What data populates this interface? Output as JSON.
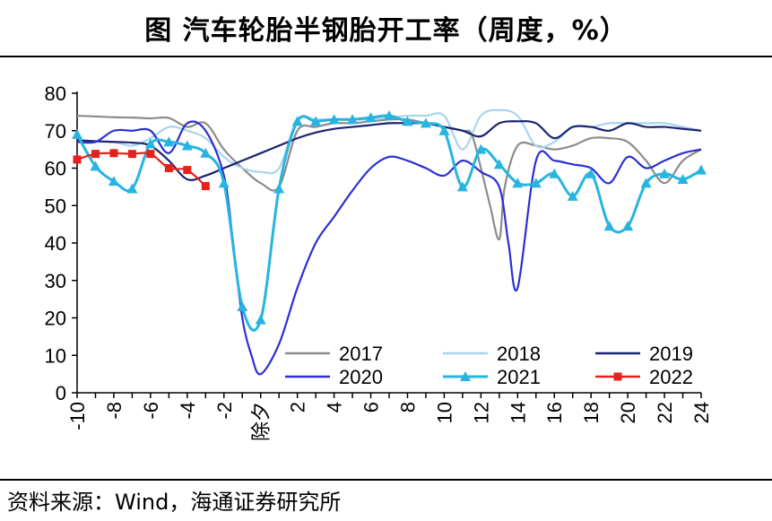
{
  "header": {
    "title": "图 汽车轮胎半钢胎开工率（周度，%）"
  },
  "footer": {
    "source": "资料来源：Wind，海通证券研究所"
  },
  "chart_data": {
    "type": "line",
    "title": "图 汽车轮胎半钢胎开工率（周度，%）",
    "xlabel": "",
    "ylabel": "",
    "ylim": [
      0,
      80
    ],
    "yticks": [
      0,
      10,
      20,
      30,
      40,
      50,
      60,
      70,
      80
    ],
    "xlim": [
      -10,
      24
    ],
    "xticks": [
      "-10",
      "-8",
      "-6",
      "-4",
      "-2",
      "除夕",
      "2",
      "4",
      "6",
      "8",
      "10",
      "12",
      "14",
      "16",
      "18",
      "20",
      "22",
      "24"
    ],
    "x_note": "x is week offset relative to Chinese New Year's Eve (除夕 = 0)",
    "grid": false,
    "legend_position": "bottom-inside",
    "series": [
      {
        "name": "2017",
        "color": "#8c8c8c",
        "marker": "none",
        "x": [
          -10,
          -9,
          -8,
          -7,
          -6,
          -5,
          -4,
          -3,
          -2,
          -1,
          0,
          1,
          2,
          3,
          4,
          5,
          6,
          7,
          8,
          9,
          10,
          11,
          11.5,
          12,
          12.5,
          13,
          13.3,
          14,
          15,
          16,
          17,
          18,
          19,
          20,
          21,
          22,
          23,
          24
        ],
        "y": [
          74,
          73.8,
          73.6,
          73.5,
          73.3,
          73.4,
          71,
          72,
          65,
          60,
          56,
          55,
          70,
          71,
          72,
          72,
          72.5,
          73,
          73,
          72,
          71,
          70,
          69,
          60,
          50,
          41,
          55,
          66,
          66,
          65,
          66,
          68,
          68,
          67,
          62,
          56,
          62,
          65
        ]
      },
      {
        "name": "2018",
        "color": "#a9d4ef",
        "marker": "none",
        "x": [
          -10,
          -9,
          -8,
          -7,
          -6,
          -5,
          -4,
          -3,
          -2,
          -1,
          0,
          1,
          2,
          3,
          4,
          5,
          6,
          7,
          8,
          9,
          10,
          11,
          12,
          13,
          14,
          15,
          16,
          17,
          18,
          19,
          20,
          21,
          22,
          23,
          24
        ],
        "y": [
          67,
          67,
          67,
          66,
          68,
          71,
          70,
          68,
          63,
          60,
          59,
          60,
          73,
          73,
          73,
          73,
          73,
          73.5,
          74,
          74,
          74,
          65,
          74,
          75.5,
          74,
          66,
          67,
          71,
          71,
          72,
          72,
          72,
          72,
          71,
          70
        ]
      },
      {
        "name": "2019",
        "color": "#1a2470",
        "marker": "none",
        "x": [
          -10,
          -9,
          -8,
          -7,
          -6,
          -5,
          -4,
          -3,
          -2,
          -1,
          0,
          1,
          2,
          3,
          4,
          5,
          6,
          7,
          8,
          9,
          10,
          11,
          12,
          13,
          14,
          15,
          16,
          17,
          18,
          19,
          20,
          21,
          22,
          23,
          24
        ],
        "y": [
          67.5,
          67.2,
          67,
          66.8,
          66,
          62,
          57,
          58,
          60,
          62,
          64,
          66,
          68,
          69.5,
          70.5,
          71,
          71.5,
          72,
          72,
          72,
          71,
          70,
          68.5,
          72,
          72.5,
          72,
          68,
          71,
          71,
          70,
          72,
          71,
          71,
          70.5,
          70
        ]
      },
      {
        "name": "2020",
        "color": "#2b2fd4",
        "marker": "none",
        "x": [
          -10,
          -9,
          -8,
          -7,
          -6,
          -5,
          -4,
          -3,
          -2,
          -1.5,
          -1,
          -0.5,
          0,
          1,
          2,
          3,
          4,
          5,
          6,
          7,
          8,
          9,
          10,
          11,
          12,
          13,
          13.5,
          14,
          15,
          16,
          17,
          18,
          19,
          20,
          21,
          22,
          23,
          24
        ],
        "y": [
          67,
          67,
          70,
          70,
          70,
          64,
          72,
          70,
          58,
          40,
          20,
          10,
          5,
          13,
          28,
          40,
          47,
          54,
          60,
          63,
          62,
          60,
          58,
          62,
          59,
          55,
          40,
          28,
          62,
          62,
          61,
          60,
          56,
          63,
          60,
          62,
          64,
          65
        ]
      },
      {
        "name": "2021",
        "color": "#27b4e0",
        "marker": "triangle",
        "x": [
          -10,
          -9,
          -8,
          -7,
          -6,
          -5,
          -4,
          -3,
          -2,
          -1,
          0,
          1,
          2,
          3,
          4,
          5,
          6,
          7,
          8,
          9,
          10,
          11,
          12,
          13,
          14,
          15,
          16,
          17,
          18,
          19,
          20,
          21,
          22,
          23,
          24
        ],
        "y": [
          69,
          60.5,
          56.5,
          54.5,
          66.5,
          67,
          66,
          64,
          56,
          23,
          19.5,
          54.5,
          72.5,
          72.5,
          73,
          73,
          73.5,
          74,
          72.5,
          72,
          70,
          55,
          65,
          61,
          56,
          56,
          58.5,
          52.5,
          58.5,
          44.5,
          44.5,
          56,
          58.5,
          57,
          59.5
        ]
      },
      {
        "name": "2022",
        "color": "#e8201c",
        "marker": "square",
        "x": [
          -10,
          -9,
          -8,
          -7,
          -6,
          -5,
          -4,
          -3
        ],
        "y": [
          62.3,
          63.8,
          64,
          63.8,
          63.8,
          60,
          59.5,
          55.2
        ]
      }
    ]
  }
}
